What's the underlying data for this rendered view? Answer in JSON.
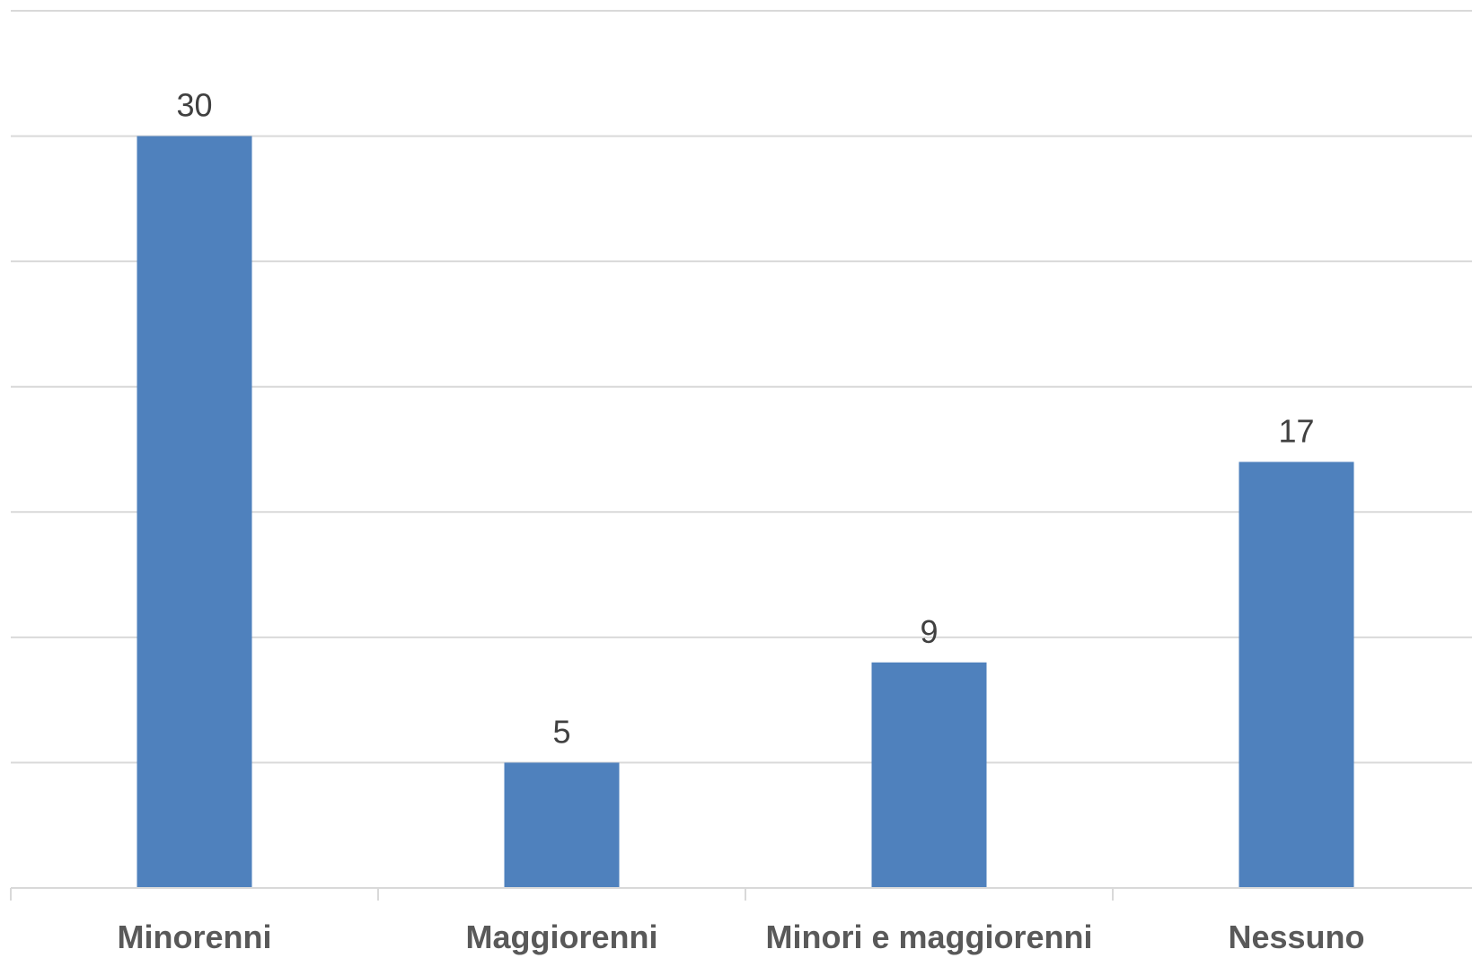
{
  "chart_data": {
    "type": "bar",
    "categories": [
      "Minorenni",
      "Maggiorenni",
      "Minori e maggiorenni",
      "Nessuno"
    ],
    "values": [
      30,
      5,
      9,
      17
    ],
    "title": "",
    "xlabel": "",
    "ylabel": "",
    "ylim": [
      0,
      35
    ],
    "y_tick_step": 5,
    "y_tick_labels_shown": false,
    "grid": true,
    "legend": "none",
    "colors": {
      "bar": "#4f81bd",
      "gridline": "#d9d9d9",
      "data_label": "#404040",
      "category_label": "#595959"
    }
  }
}
